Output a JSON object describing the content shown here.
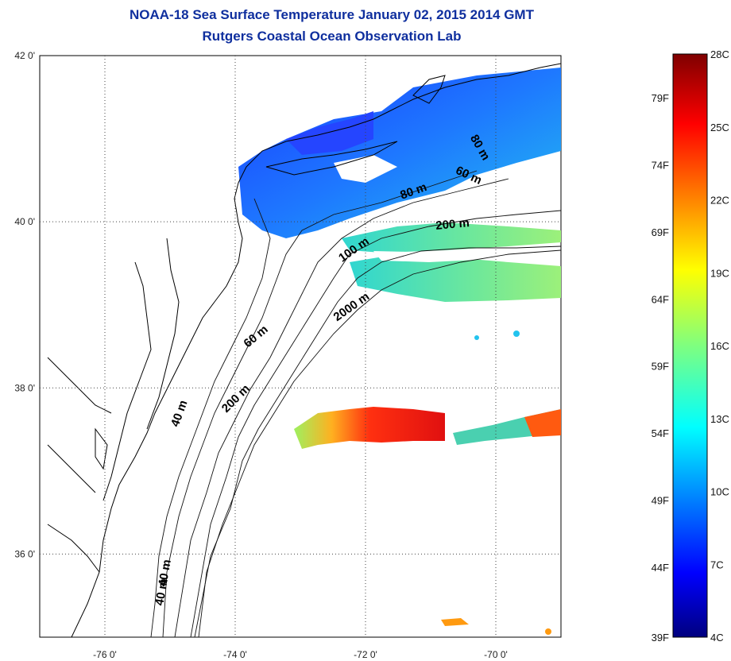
{
  "header": {
    "title": "NOAA-18 Sea Surface Temperature January 02, 2015 2014 GMT",
    "subtitle": "Rutgers Coastal Ocean Observation Lab"
  },
  "map": {
    "lat_labels": [
      {
        "value": 42,
        "text": "42 0'"
      },
      {
        "value": 40,
        "text": "40 0'"
      },
      {
        "value": 38,
        "text": "38 0'"
      },
      {
        "value": 36,
        "text": "36 0'"
      }
    ],
    "lon_labels": [
      {
        "value": -76,
        "text": "-76 0'"
      },
      {
        "value": -74,
        "text": "-74 0'"
      },
      {
        "value": -72,
        "text": "-72 0'"
      },
      {
        "value": -70,
        "text": "-70 0'"
      }
    ],
    "lon_range": [
      -77,
      -69
    ],
    "lat_range": [
      35,
      42
    ],
    "contour_labels": [
      {
        "text": "80 m"
      },
      {
        "text": "60 m"
      },
      {
        "text": "80 m"
      },
      {
        "text": "200 m"
      },
      {
        "text": "100 m"
      },
      {
        "text": "2000 m"
      },
      {
        "text": "60 m"
      },
      {
        "text": "200 m"
      },
      {
        "text": "40 m"
      },
      {
        "text": "40 m"
      },
      {
        "text": "40 m"
      }
    ]
  },
  "colorbar": {
    "celsius_labels": [
      "28C",
      "25C",
      "22C",
      "19C",
      "16C",
      "13C",
      "10C",
      "7C",
      "4C"
    ],
    "fahrenheit_labels": [
      "79F",
      "74F",
      "69F",
      "64F",
      "59F",
      "54F",
      "49F",
      "44F",
      "39F"
    ],
    "colors": [
      "#00007f",
      "#0000ff",
      "#007fff",
      "#00ffff",
      "#7fff7f",
      "#ffff00",
      "#ff7f00",
      "#ff0000",
      "#7f0000"
    ]
  }
}
